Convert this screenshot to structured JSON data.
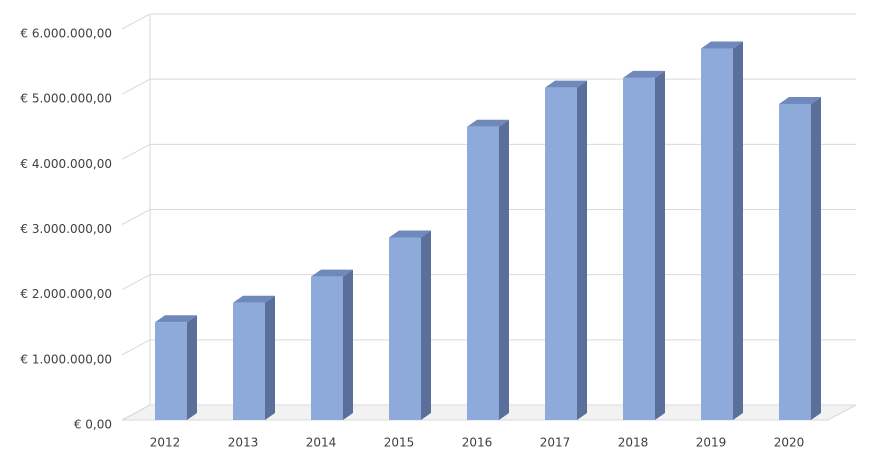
{
  "chart_data": {
    "type": "bar3d",
    "categories": [
      "2012",
      "2013",
      "2014",
      "2015",
      "2016",
      "2017",
      "2018",
      "2019",
      "2020"
    ],
    "values": [
      1500000,
      1800000,
      2200000,
      2800000,
      4500000,
      5100000,
      5250000,
      5700000,
      4850000
    ],
    "color": "#8eaadb",
    "side_color": "#5b6f9b",
    "top_color": "#6f89ba",
    "ylim": [
      0,
      6000000
    ],
    "yticks": [
      {
        "value": 0,
        "label": "€ 0,00"
      },
      {
        "value": 1000000,
        "label": "€ 1.000.000,00"
      },
      {
        "value": 2000000,
        "label": "€ 2.000.000,00"
      },
      {
        "value": 3000000,
        "label": "€ 3.000.000,00"
      },
      {
        "value": 4000000,
        "label": "€ 4.000.000,00"
      },
      {
        "value": 5000000,
        "label": "€ 5.000.000,00"
      },
      {
        "value": 6000000,
        "label": "€ 6.000.000,00"
      }
    ],
    "grid": true
  }
}
